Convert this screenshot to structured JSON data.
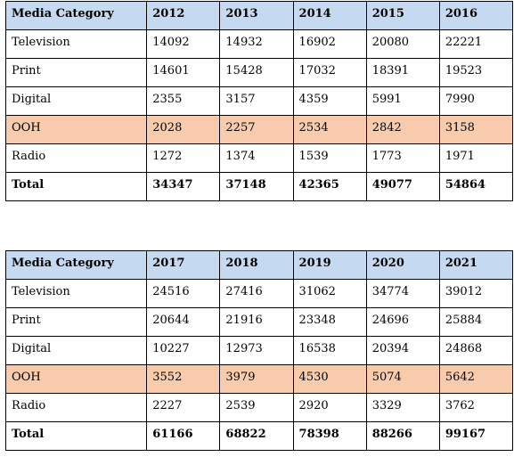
{
  "tables": [
    {
      "header": [
        "Media Category",
        "2012",
        "2013",
        "2014",
        "2015",
        "2016"
      ],
      "rows": [
        {
          "category": "Television",
          "values": [
            "14092",
            "14932",
            "16902",
            "20080",
            "22221"
          ]
        },
        {
          "category": "Print",
          "values": [
            "14601",
            "15428",
            "17032",
            "18391",
            "19523"
          ]
        },
        {
          "category": "Digital",
          "values": [
            "2355",
            "3157",
            "4359",
            "5991",
            "7990"
          ]
        },
        {
          "category": "OOH",
          "values": [
            "2028",
            "2257",
            "2534",
            "2842",
            "3158"
          ],
          "highlight": true
        },
        {
          "category": "Radio",
          "values": [
            "1272",
            "1374",
            "1539",
            "1773",
            "1971"
          ]
        },
        {
          "category": "Total",
          "values": [
            "34347",
            "37148",
            "42365",
            "49077",
            "54864"
          ],
          "total": true
        }
      ]
    },
    {
      "header": [
        "Media Category",
        "2017",
        "2018",
        "2019",
        "2020",
        "2021"
      ],
      "rows": [
        {
          "category": "Television",
          "values": [
            "24516",
            "27416",
            "31062",
            "34774",
            "39012"
          ]
        },
        {
          "category": "Print",
          "values": [
            "20644",
            "21916",
            "23348",
            "24696",
            "25884"
          ]
        },
        {
          "category": "Digital",
          "values": [
            "10227",
            "12973",
            "16538",
            "20394",
            "24868"
          ]
        },
        {
          "category": "OOH",
          "values": [
            "3552",
            "3979",
            "4530",
            "5074",
            "5642"
          ],
          "highlight": true
        },
        {
          "category": "Radio",
          "values": [
            "2227",
            "2539",
            "2920",
            "3329",
            "3762"
          ]
        },
        {
          "category": "Total",
          "values": [
            "61166",
            "68822",
            "78398",
            "88266",
            "99167"
          ],
          "total": true
        }
      ]
    }
  ],
  "colors": {
    "header_bg": "#c5d9f1",
    "highlight_bg": "#f8cbad",
    "border": "#000000"
  }
}
